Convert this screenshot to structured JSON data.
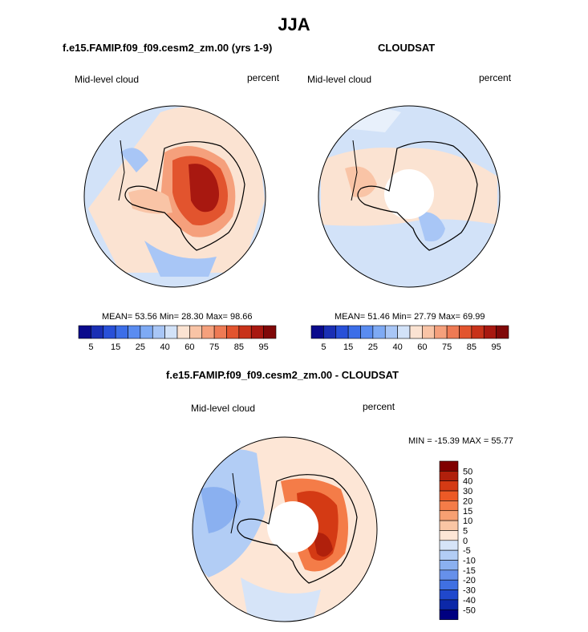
{
  "figure": {
    "title": "JJA"
  },
  "chart_data": [
    {
      "type": "heatmap",
      "projection": "south-polar-stereographic",
      "title": "f.e15.FAMIP.f09_f09.cesm2_zm.00 (yrs 1-9)",
      "left_label": "Mid-level cloud",
      "right_label": "percent",
      "stats": {
        "mean_label": "MEAN=",
        "mean": "53.56",
        "min_label": "Min=",
        "min": "28.30",
        "max_label": "Max=",
        "max": "98.66"
      },
      "levels": [
        5,
        10,
        15,
        20,
        25,
        30,
        40,
        50,
        60,
        70,
        75,
        80,
        85,
        90,
        95
      ],
      "tick_labels": [
        "5",
        "15",
        "25",
        "40",
        "60",
        "75",
        "85",
        "95"
      ],
      "colors": [
        "#0a0a8c",
        "#1a2fb4",
        "#2850d8",
        "#3c6ee8",
        "#5a8cf0",
        "#7eaaf4",
        "#a8c6f6",
        "#d2e2f8",
        "#fbe3d2",
        "#f9c4a6",
        "#f5a07c",
        "#ee7a54",
        "#e2542e",
        "#c8321a",
        "#a81810",
        "#800808"
      ],
      "note": "approximate spatial pattern; Antarctic interior high (90+), surrounding ocean ~40-60"
    },
    {
      "type": "heatmap",
      "projection": "south-polar-stereographic",
      "title": "CLOUDSAT",
      "left_label": "Mid-level cloud",
      "right_label": "percent",
      "stats": {
        "mean_label": "MEAN=",
        "mean": "51.46",
        "min_label": "Min=",
        "min": "27.79",
        "max_label": "Max=",
        "max": "69.99"
      },
      "levels": [
        5,
        10,
        15,
        20,
        25,
        30,
        40,
        50,
        60,
        70,
        75,
        80,
        85,
        90,
        95
      ],
      "tick_labels": [
        "5",
        "15",
        "25",
        "40",
        "60",
        "75",
        "85",
        "95"
      ],
      "colors": [
        "#0a0a8c",
        "#1a2fb4",
        "#2850d8",
        "#3c6ee8",
        "#5a8cf0",
        "#7eaaf4",
        "#a8c6f6",
        "#d2e2f8",
        "#fbe3d2",
        "#f9c4a6",
        "#f5a07c",
        "#ee7a54",
        "#e2542e",
        "#c8321a",
        "#a81810",
        "#800808"
      ],
      "note": "no data near pole (white disk); values mostly 40-60"
    },
    {
      "type": "heatmap",
      "projection": "south-polar-stereographic",
      "title": "f.e15.FAMIP.f09_f09.cesm2_zm.00 - CLOUDSAT",
      "left_label": "Mid-level cloud",
      "right_label": "percent",
      "stats": {
        "min_label": "MIN =",
        "min": "-15.39",
        "max_label": "MAX =",
        "max": "55.77"
      },
      "levels": [
        -50,
        -40,
        -30,
        -20,
        -15,
        -10,
        -5,
        0,
        5,
        10,
        15,
        20,
        30,
        40,
        50
      ],
      "tick_labels": [
        "50",
        "40",
        "30",
        "20",
        "15",
        "10",
        "5",
        "0",
        "-5",
        "-10",
        "-15",
        "-20",
        "-30",
        "-40",
        "-50"
      ],
      "colors": [
        "#800000",
        "#b0200c",
        "#d43a14",
        "#ec5a26",
        "#f47c48",
        "#f7a072",
        "#fac6a4",
        "#fde6d6",
        "#d6e4f8",
        "#b2cdf5",
        "#8ab0f0",
        "#6690ea",
        "#4070e2",
        "#2048cc",
        "#0c28a8",
        "#000080"
      ],
      "note": "positive differences over Antarctic interior, negative over Antarctic Peninsula/Weddell region"
    }
  ]
}
